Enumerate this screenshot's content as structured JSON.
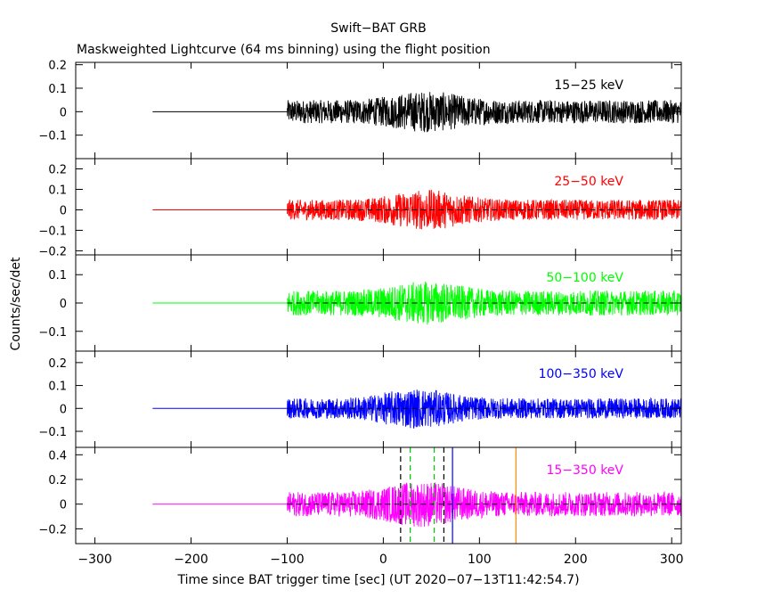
{
  "figure": {
    "title": "Swift−BAT GRB",
    "subtitle": "Maskweighted Lightcurve (64 ms binning) using the flight position",
    "xlabel": "Time since BAT trigger time [sec] (UT 2020−07−13T11:42:54.7)",
    "ylabel": "Counts/sec/det"
  },
  "chart_data": [
    {
      "type": "line",
      "band": "15−25 keV",
      "color": "#000000",
      "xlim": [
        -320,
        310
      ],
      "ylim": [
        -0.2,
        0.21
      ],
      "yticks": [
        0.2,
        0.1,
        0,
        -0.1
      ],
      "ytick_labels": [
        "0.2",
        "0.1",
        "0",
        "−0.1"
      ],
      "flat_segment": {
        "x": [
          -240,
          -100
        ],
        "y": 0
      },
      "noise_segment": {
        "x": [
          -100,
          310
        ],
        "baseline_amplitude": 0.045,
        "peak_amplitude": 0.08,
        "peak_center": 45
      },
      "zero_line": false
    },
    {
      "type": "line",
      "band": "25−50 keV",
      "color": "#ff0000",
      "xlim": [
        -320,
        310
      ],
      "ylim": [
        -0.22,
        0.25
      ],
      "yticks": [
        0.2,
        0.1,
        0,
        -0.1,
        -0.2
      ],
      "ytick_labels": [
        "0.2",
        "0.1",
        "0",
        "−0.1",
        "−0.2"
      ],
      "flat_segment": {
        "x": [
          -240,
          -100
        ],
        "y": 0
      },
      "noise_segment": {
        "x": [
          -100,
          310
        ],
        "baseline_amplitude": 0.045,
        "peak_amplitude": 0.09,
        "peak_center": 45
      },
      "zero_line": true
    },
    {
      "type": "line",
      "band": "50−100 keV",
      "color": "#00ff00",
      "xlim": [
        -320,
        310
      ],
      "ylim": [
        -0.17,
        0.17
      ],
      "yticks": [
        0.1,
        0,
        -0.1
      ],
      "ytick_labels": [
        "0.1",
        "0",
        "−0.1"
      ],
      "flat_segment": {
        "x": [
          -240,
          -100
        ],
        "y": 0
      },
      "noise_segment": {
        "x": [
          -100,
          310
        ],
        "baseline_amplitude": 0.04,
        "peak_amplitude": 0.07,
        "peak_center": 45
      },
      "zero_line": true
    },
    {
      "type": "line",
      "band": "100−350 keV",
      "color": "#0000ff",
      "xlim": [
        -320,
        310
      ],
      "ylim": [
        -0.17,
        0.25
      ],
      "yticks": [
        0.2,
        0.1,
        0,
        -0.1
      ],
      "ytick_labels": [
        "0.2",
        "0.1",
        "0",
        "−0.1"
      ],
      "flat_segment": {
        "x": [
          -240,
          -100
        ],
        "y": 0
      },
      "noise_segment": {
        "x": [
          -100,
          310
        ],
        "baseline_amplitude": 0.04,
        "peak_amplitude": 0.08,
        "peak_center": 35
      },
      "zero_line": true
    },
    {
      "type": "line",
      "band": "15−350 keV",
      "color": "#ff00ff",
      "xlim": [
        -320,
        310
      ],
      "ylim": [
        -0.32,
        0.46
      ],
      "yticks": [
        0.4,
        0.2,
        0,
        -0.2
      ],
      "ytick_labels": [
        "0.4",
        "0.2",
        "0",
        "−0.2"
      ],
      "flat_segment": {
        "x": [
          -240,
          -100
        ],
        "y": 0
      },
      "noise_segment": {
        "x": [
          -100,
          310
        ],
        "baseline_amplitude": 0.09,
        "peak_amplitude": 0.17,
        "peak_center": 40
      },
      "zero_line": true,
      "markers": [
        {
          "x": 18,
          "color": "#000000",
          "style": "dashed"
        },
        {
          "x": 63,
          "color": "#000000",
          "style": "dashed"
        },
        {
          "x": 28,
          "color": "#00cc00",
          "style": "dashed"
        },
        {
          "x": 53,
          "color": "#00cc00",
          "style": "dashed"
        },
        {
          "x": 72,
          "color": "#0000ff",
          "style": "solid"
        },
        {
          "x": 138,
          "color": "#ff8c00",
          "style": "solid"
        }
      ]
    }
  ],
  "xaxis": {
    "ticks": [
      -300,
      -200,
      -100,
      0,
      100,
      200,
      300
    ],
    "tick_labels": [
      "−300",
      "−200",
      "−100",
      "0",
      "100",
      "200",
      "300"
    ]
  }
}
